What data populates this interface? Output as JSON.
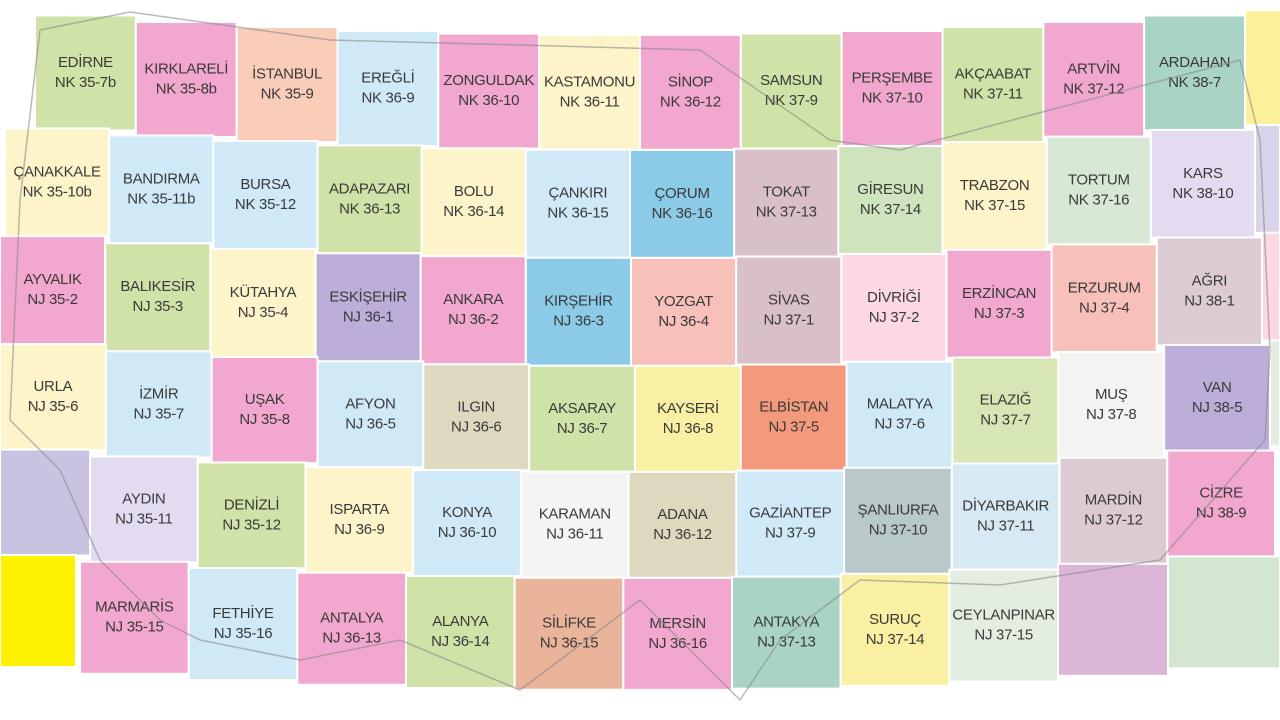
{
  "map": {
    "rows": [
      {
        "cells": [
          {
            "name": "EDİRNE",
            "code": "NK 35-7b",
            "color": "#cfe3a8"
          },
          {
            "name": "KIRKLARELİ",
            "code": "NK 35-8b",
            "color": "#f2a7cf"
          },
          {
            "name": "İSTANBUL",
            "code": "NK 35-9",
            "color": "#f9cdb8"
          },
          {
            "name": "EREĞLİ",
            "code": "NK 36-9",
            "color": "#cfe9f7"
          },
          {
            "name": "ZONGULDAK",
            "code": "NK 36-10",
            "color": "#f2a7cf"
          },
          {
            "name": "KASTAMONU",
            "code": "NK 36-11",
            "color": "#fdf5c9"
          },
          {
            "name": "SİNOP",
            "code": "NK 36-12",
            "color": "#f2a7cf"
          },
          {
            "name": "SAMSUN",
            "code": "NK 37-9",
            "color": "#cfe3a8"
          },
          {
            "name": "PERŞEMBE",
            "code": "NK 37-10",
            "color": "#f2a7cf"
          },
          {
            "name": "AKÇAABAT",
            "code": "NK 37-11",
            "color": "#cfe3a8"
          },
          {
            "name": "ARTVİN",
            "code": "NK 37-12",
            "color": "#f2a7cf"
          },
          {
            "name": "ARDAHAN",
            "code": "NK 38-7",
            "color": "#a9d3c4"
          }
        ]
      },
      {
        "cells": [
          {
            "name": "ÇANAKKALE",
            "code": "NK 35-10b",
            "color": "#fdf5c9"
          },
          {
            "name": "BANDIRMA",
            "code": "NK 35-11b",
            "color": "#cfe9f7"
          },
          {
            "name": "BURSA",
            "code": "NK 35-12",
            "color": "#cfe9f7"
          },
          {
            "name": "ADAPAZARI",
            "code": "NK 36-13",
            "color": "#cfe3a8"
          },
          {
            "name": "BOLU",
            "code": "NK 36-14",
            "color": "#fdf5c9"
          },
          {
            "name": "ÇANKIRI",
            "code": "NK 36-15",
            "color": "#cfe9f7"
          },
          {
            "name": "ÇORUM",
            "code": "NK 36-16",
            "color": "#8ccbe8"
          },
          {
            "name": "TOKAT",
            "code": "NK 37-13",
            "color": "#d9bfc8"
          },
          {
            "name": "GİRESUN",
            "code": "NK 37-14",
            "color": "#cfe3bd"
          },
          {
            "name": "TRABZON",
            "code": "NK 37-15",
            "color": "#fdf5c9"
          },
          {
            "name": "TORTUM",
            "code": "NK 37-16",
            "color": "#d7e8d5"
          },
          {
            "name": "KARS",
            "code": "NK 38-10",
            "color": "#e3dcf0"
          }
        ]
      },
      {
        "cells": [
          {
            "name": "AYVALIK",
            "code": "NJ 35-2",
            "color": "#f2a7cf"
          },
          {
            "name": "BALIKESİR",
            "code": "NJ 35-3",
            "color": "#cfe3a8"
          },
          {
            "name": "KÜTAHYA",
            "code": "NJ 35-4",
            "color": "#fdf5c9"
          },
          {
            "name": "ESKİŞEHİR",
            "code": "NJ 36-1",
            "color": "#bcaed9"
          },
          {
            "name": "ANKARA",
            "code": "NJ 36-2",
            "color": "#f2a7cf"
          },
          {
            "name": "KIRŞEHİR",
            "code": "NJ 36-3",
            "color": "#8ccbe8"
          },
          {
            "name": "YOZGAT",
            "code": "NJ 36-4",
            "color": "#f7c0b8"
          },
          {
            "name": "SİVAS",
            "code": "NJ 37-1",
            "color": "#d9bfc8"
          },
          {
            "name": "DİVRİĞİ",
            "code": "NJ 37-2",
            "color": "#fbd8e3"
          },
          {
            "name": "ERZİNCAN",
            "code": "NJ 37-3",
            "color": "#f2a7cf"
          },
          {
            "name": "ERZURUM",
            "code": "NJ 37-4",
            "color": "#f7c0b8"
          },
          {
            "name": "AĞRI",
            "code": "NJ 38-1",
            "color": "#dccbd3"
          }
        ]
      },
      {
        "cells": [
          {
            "name": "URLA",
            "code": "NJ 35-6",
            "color": "#fdf5c9"
          },
          {
            "name": "İZMİR",
            "code": "NJ 35-7",
            "color": "#cfe9f7"
          },
          {
            "name": "UŞAK",
            "code": "NJ 35-8",
            "color": "#f2a7cf"
          },
          {
            "name": "AFYON",
            "code": "NJ 36-5",
            "color": "#cfe9f7"
          },
          {
            "name": "ILGIN",
            "code": "NJ 36-6",
            "color": "#ded8bf"
          },
          {
            "name": "AKSARAY",
            "code": "NJ 36-7",
            "color": "#cfe3a8"
          },
          {
            "name": "KAYSERİ",
            "code": "NJ 36-8",
            "color": "#f9f0a3"
          },
          {
            "name": "ELBİSTAN",
            "code": "NJ 37-5",
            "color": "#f49a7c"
          },
          {
            "name": "MALATYA",
            "code": "NJ 37-6",
            "color": "#cfe9f7"
          },
          {
            "name": "ELAZIĞ",
            "code": "NJ 37-7",
            "color": "#d6e6b5"
          },
          {
            "name": "MUŞ",
            "code": "NJ 37-8",
            "color": "#f4f4f2"
          },
          {
            "name": "VAN",
            "code": "NJ 38-5",
            "color": "#bcaed9"
          }
        ]
      },
      {
        "cells": [
          {
            "name": "AYDIN",
            "code": "NJ 35-11",
            "color": "#e3dcf0"
          },
          {
            "name": "DENİZLİ",
            "code": "NJ 35-12",
            "color": "#cfe3a8"
          },
          {
            "name": "ISPARTA",
            "code": "NJ 36-9",
            "color": "#fdf5c9"
          },
          {
            "name": "KONYA",
            "code": "NJ 36-10",
            "color": "#cfe9f7"
          },
          {
            "name": "KARAMAN",
            "code": "NJ 36-11",
            "color": "#f4f4f2"
          },
          {
            "name": "ADANA",
            "code": "NJ 36-12",
            "color": "#ded8bf"
          },
          {
            "name": "GAZİANTEP",
            "code": "NJ 37-9",
            "color": "#cfe9f7"
          },
          {
            "name": "ŞANLIURFA",
            "code": "NJ 37-10",
            "color": "#b9c9c9"
          },
          {
            "name": "DİYARBAKIR",
            "code": "NJ 37-11",
            "color": "#d7e9f2"
          },
          {
            "name": "MARDİN",
            "code": "NJ 37-12",
            "color": "#dccbd3"
          },
          {
            "name": "CİZRE",
            "code": "NJ 38-9",
            "color": "#f2a7cf"
          }
        ]
      },
      {
        "cells": [
          {
            "name": "MARMARİS",
            "code": "NJ 35-15",
            "color": "#f2a7cf"
          },
          {
            "name": "FETHİYE",
            "code": "NJ 35-16",
            "color": "#cfe9f7"
          },
          {
            "name": "ANTALYA",
            "code": "NJ 36-13",
            "color": "#f2a7cf"
          },
          {
            "name": "ALANYA",
            "code": "NJ 36-14",
            "color": "#cfe3a8"
          },
          {
            "name": "SİLİFKE",
            "code": "NJ 36-15",
            "color": "#eab49a"
          },
          {
            "name": "MERSİN",
            "code": "NJ 36-16",
            "color": "#f2a7cf"
          },
          {
            "name": "ANTAKYA",
            "code": "NJ 37-13",
            "color": "#a9d3c4"
          },
          {
            "name": "SURUÇ",
            "code": "NJ 37-14",
            "color": "#f9f0a3"
          },
          {
            "name": "CEYLANPINAR",
            "code": "NJ 37-15",
            "color": "#e4eee0"
          }
        ]
      }
    ]
  }
}
